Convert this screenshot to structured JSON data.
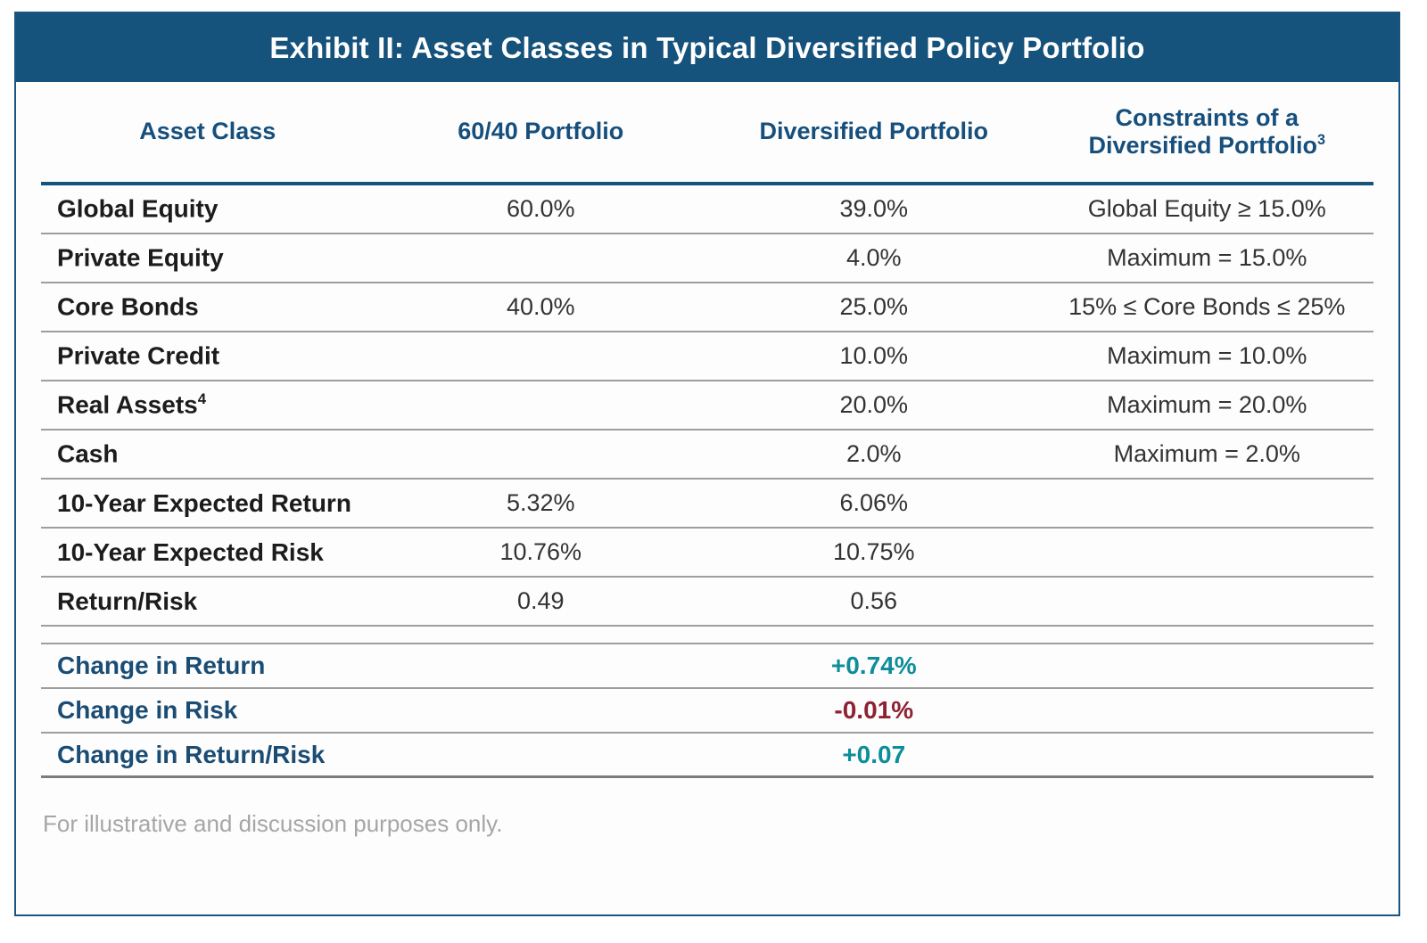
{
  "title": "Exhibit II: Asset Classes in Typical Diversified Policy Portfolio",
  "columns": {
    "asset_class": "Asset Class",
    "portfolio_6040": "60/40 Portfolio",
    "diversified": "Diversified Portfolio",
    "constraints_line1": "Constraints of a",
    "constraints_line2": "Diversified Portfolio",
    "constraints_sup": "3"
  },
  "asset_rows": [
    {
      "label": "Global Equity",
      "sup": "",
      "p6040": "60.0%",
      "diversified": "39.0%",
      "constraint": "Global Equity ≥ 15.0%"
    },
    {
      "label": "Private Equity",
      "sup": "",
      "p6040": "",
      "diversified": "4.0%",
      "constraint": "Maximum = 15.0%"
    },
    {
      "label": "Core Bonds",
      "sup": "",
      "p6040": "40.0%",
      "diversified": "25.0%",
      "constraint": "15% ≤ Core Bonds ≤ 25%"
    },
    {
      "label": "Private Credit",
      "sup": "",
      "p6040": "",
      "diversified": "10.0%",
      "constraint": "Maximum = 10.0%"
    },
    {
      "label": "Real Assets",
      "sup": "4",
      "p6040": "",
      "diversified": "20.0%",
      "constraint": "Maximum = 20.0%"
    },
    {
      "label": "Cash",
      "sup": "",
      "p6040": "",
      "diversified": "2.0%",
      "constraint": "Maximum = 2.0%"
    }
  ],
  "stat_rows": [
    {
      "label": "10-Year Expected Return",
      "p6040": "5.32%",
      "diversified": "6.06%"
    },
    {
      "label": "10-Year Expected Risk",
      "p6040": "10.76%",
      "diversified": "10.75%"
    },
    {
      "label": "Return/Risk",
      "p6040": "0.49",
      "diversified": "0.56"
    }
  ],
  "change_rows": [
    {
      "label": "Change in Return",
      "value": "+0.74%",
      "direction": "positive"
    },
    {
      "label": "Change in Risk",
      "value": "-0.01%",
      "direction": "negative"
    },
    {
      "label": "Change in Return/Risk",
      "value": "+0.07",
      "direction": "positive"
    }
  ],
  "footnote": "For illustrative and discussion purposes only.",
  "colors": {
    "title_band_bg": "#15527c",
    "title_text": "#ffffff",
    "column_header_text": "#174f7c",
    "header_rule": "#15527c",
    "row_divider": "#9e9e9e",
    "change_label": "#1a4c74",
    "positive_value": "#0e8d9b",
    "negative_value": "#8e2233",
    "footnote_text": "#a6a6a6",
    "frame_border": "#1a5480"
  },
  "chart_data": {
    "type": "table",
    "title": "Exhibit II: Asset Classes in Typical Diversified Policy Portfolio",
    "columns": [
      "Asset Class",
      "60/40 Portfolio",
      "Diversified Portfolio",
      "Constraints of a Diversified Portfolio³"
    ],
    "rows": [
      [
        "Global Equity",
        "60.0%",
        "39.0%",
        "Global Equity ≥ 15.0%"
      ],
      [
        "Private Equity",
        "",
        "4.0%",
        "Maximum = 15.0%"
      ],
      [
        "Core Bonds",
        "40.0%",
        "25.0%",
        "15% ≤ Core Bonds ≤ 25%"
      ],
      [
        "Private Credit",
        "",
        "10.0%",
        "Maximum = 10.0%"
      ],
      [
        "Real Assets⁴",
        "",
        "20.0%",
        "Maximum = 20.0%"
      ],
      [
        "Cash",
        "",
        "2.0%",
        "Maximum = 2.0%"
      ],
      [
        "10-Year Expected Return",
        "5.32%",
        "6.06%",
        ""
      ],
      [
        "10-Year Expected Risk",
        "10.76%",
        "10.75%",
        ""
      ],
      [
        "Return/Risk",
        "0.49",
        "0.56",
        ""
      ],
      [
        "Change in Return",
        "",
        "+0.74%",
        ""
      ],
      [
        "Change in Risk",
        "",
        "-0.01%",
        ""
      ],
      [
        "Change in Return/Risk",
        "",
        "+0.07",
        ""
      ]
    ],
    "footnote": "For illustrative and discussion purposes only."
  }
}
